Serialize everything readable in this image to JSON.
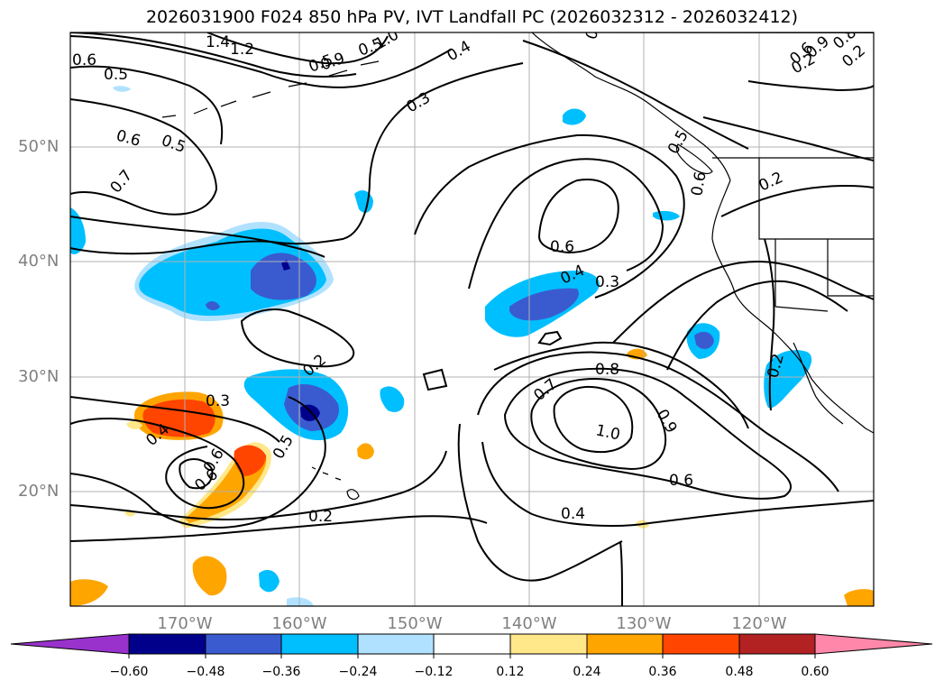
{
  "title": "2026031900 F024 850 hPa PV, IVT Landfall PC (2026032312 - 2026032412)",
  "lat_labels": [
    "50°N",
    "40°N",
    "30°N",
    "20°N"
  ],
  "lon_labels": [
    "170°W",
    "160°W",
    "150°W",
    "140°W",
    "130°W",
    "120°W"
  ],
  "colorbar": {
    "ticks": [
      "−0.60",
      "−0.48",
      "−0.36",
      "−0.24",
      "−0.12",
      "0.12",
      "0.24",
      "0.36",
      "0.48",
      "0.60"
    ],
    "colors": [
      "#9932cc",
      "#00008b",
      "#3a5bd0",
      "#00bfff",
      "#b0e2ff",
      "#ffffff",
      "#ffe88a",
      "#ffa500",
      "#ff4500",
      "#b22222",
      "#ff88aa"
    ]
  },
  "contour_labels": [
    "1.4",
    "1.2",
    "1.0",
    "0.4",
    "0.5",
    "0.6",
    "0.5",
    "0.9",
    "0.3",
    "0.5",
    "0.6",
    "0.5",
    "0.7",
    "0.6",
    "0.6",
    "0.2",
    "0.4",
    "0.3",
    "0.6",
    "0.8",
    "0.7",
    "1.0",
    "0.9",
    "0.6",
    "0.4",
    "0.2",
    "0.3",
    "0.4",
    "0.6",
    "0.5",
    "0.5",
    "0.2",
    "0.2",
    "0.3",
    "0.6",
    "0.8",
    "0.9",
    "0.2",
    "0.2"
  ]
}
